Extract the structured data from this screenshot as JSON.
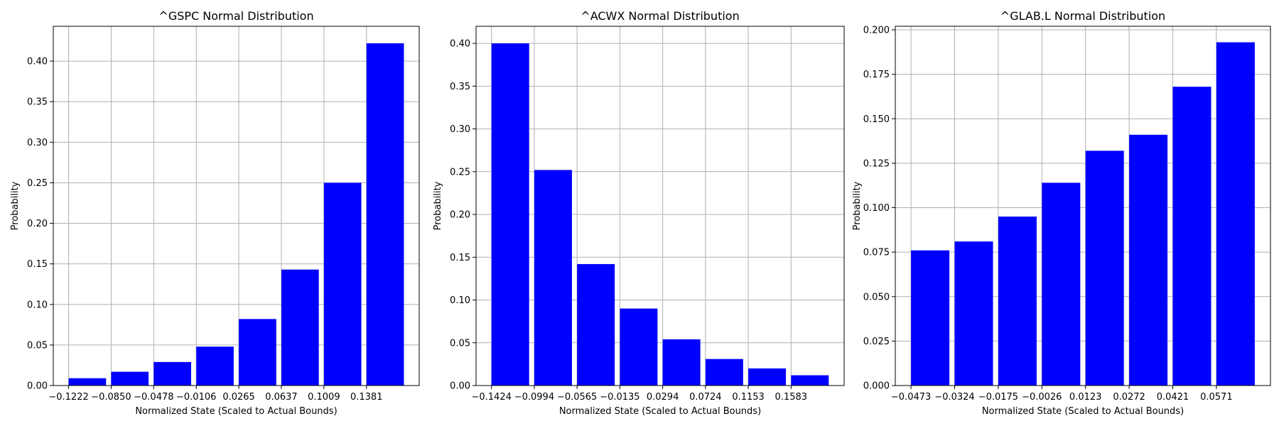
{
  "chart_data": [
    {
      "type": "bar",
      "title": "^GSPC Normal Distribution",
      "xlabel": "Normalized State (Scaled to Actual Bounds)",
      "ylabel": "Probability",
      "xticks": [
        "−0.1222",
        "−0.0850",
        "−0.0478",
        "−0.0106",
        "0.0265",
        "0.0637",
        "0.1009",
        "0.1381"
      ],
      "values": [
        0.009,
        0.017,
        0.029,
        0.048,
        0.082,
        0.143,
        0.25,
        0.422
      ],
      "ylim": [
        0,
        0.443
      ],
      "yticks": [
        0.0,
        0.05,
        0.1,
        0.15,
        0.2,
        0.25,
        0.3,
        0.35,
        0.4
      ],
      "ytick_labels": [
        "0.00",
        "0.05",
        "0.10",
        "0.15",
        "0.20",
        "0.25",
        "0.30",
        "0.35",
        "0.40"
      ],
      "color": "#0000ff",
      "grid": true
    },
    {
      "type": "bar",
      "title": "^ACWX Normal Distribution",
      "xlabel": "Normalized State (Scaled to Actual Bounds)",
      "ylabel": "Probability",
      "xticks": [
        "−0.1424",
        "−0.0994",
        "−0.0565",
        "−0.0135",
        "0.0294",
        "0.0724",
        "0.1153",
        "0.1583"
      ],
      "values": [
        0.4,
        0.252,
        0.142,
        0.09,
        0.054,
        0.031,
        0.02,
        0.012
      ],
      "ylim": [
        0,
        0.42
      ],
      "yticks": [
        0.0,
        0.05,
        0.1,
        0.15,
        0.2,
        0.25,
        0.3,
        0.35,
        0.4
      ],
      "ytick_labels": [
        "0.00",
        "0.05",
        "0.10",
        "0.15",
        "0.20",
        "0.25",
        "0.30",
        "0.35",
        "0.40"
      ],
      "color": "#0000ff",
      "grid": true
    },
    {
      "type": "bar",
      "title": "^GLAB.L Normal Distribution",
      "xlabel": "Normalized State (Scaled to Actual Bounds)",
      "ylabel": "Probability",
      "xticks": [
        "−0.0473",
        "−0.0324",
        "−0.0175",
        "−0.0026",
        "0.0123",
        "0.0272",
        "0.0421",
        "0.0571"
      ],
      "values": [
        0.076,
        0.081,
        0.095,
        0.114,
        0.132,
        0.141,
        0.168,
        0.193
      ],
      "ylim": [
        0,
        0.202
      ],
      "yticks": [
        0.0,
        0.025,
        0.05,
        0.075,
        0.1,
        0.125,
        0.15,
        0.175,
        0.2
      ],
      "ytick_labels": [
        "0.000",
        "0.025",
        "0.050",
        "0.075",
        "0.100",
        "0.125",
        "0.150",
        "0.175",
        "0.200"
      ],
      "color": "#0000ff",
      "grid": true
    }
  ]
}
